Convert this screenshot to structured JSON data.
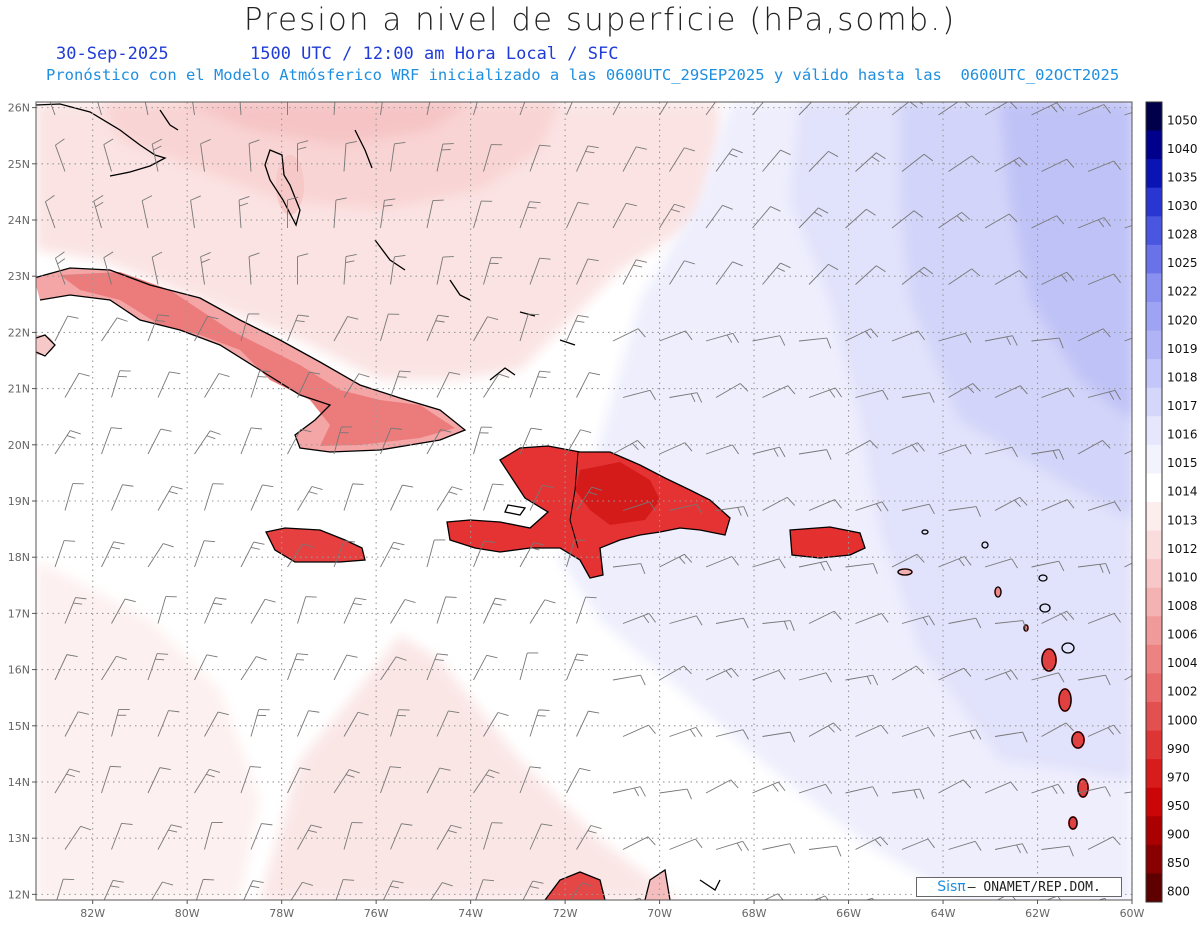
{
  "header": {
    "title": "Presion a nivel de superficie (hPa,somb.)",
    "date": "30-Sep-2025",
    "time_info": "1500 UTC / 12:00 am Hora Local / SFC",
    "model_info": "Pronóstico con el Modelo Atmósferico WRF inicializado a las 0600UTC_29SEP2025 y válido hasta las  0600UTC_02OCT2025"
  },
  "map": {
    "lon_labels": [
      "82W",
      "80W",
      "78W",
      "76W",
      "74W",
      "72W",
      "70W",
      "68W",
      "66W",
      "64W",
      "62W",
      "60W"
    ],
    "lat_labels": [
      "26N",
      "25N",
      "24N",
      "23N",
      "22N",
      "21N",
      "20N",
      "19N",
      "18N",
      "17N",
      "16N",
      "15N",
      "14N",
      "13N",
      "12N"
    ],
    "lon_range": [
      -83.2,
      -60
    ],
    "lat_range": [
      11.9,
      26.1
    ]
  },
  "colorbar": {
    "levels": [
      "1050",
      "1040",
      "1035",
      "1030",
      "1028",
      "1025",
      "1022",
      "1020",
      "1019",
      "1018",
      "1017",
      "1016",
      "1015",
      "1014",
      "1013",
      "1012",
      "1010",
      "1008",
      "1006",
      "1004",
      "1002",
      "1000",
      "990",
      "970",
      "950",
      "900",
      "850",
      "800"
    ],
    "colors": [
      "#00004a",
      "#00008c",
      "#0a14b4",
      "#2a36d2",
      "#4a55e0",
      "#6a72ea",
      "#8a90f0",
      "#9ea3f3",
      "#b0b4f6",
      "#c3c6f8",
      "#d5d7fa",
      "#e6e7fc",
      "#f3f3fe",
      "#ffffff",
      "#fdeeee",
      "#fbdcdc",
      "#f8c8c8",
      "#f5b2b2",
      "#f19a9a",
      "#ed8282",
      "#e86a6a",
      "#e35050",
      "#dd3434",
      "#d81c1c",
      "#cc0606",
      "#aa0000",
      "#880000",
      "#5e0000"
    ]
  },
  "credit": {
    "logo": "Sisπ",
    "org": "– ONAMET/REP.DOM."
  }
}
